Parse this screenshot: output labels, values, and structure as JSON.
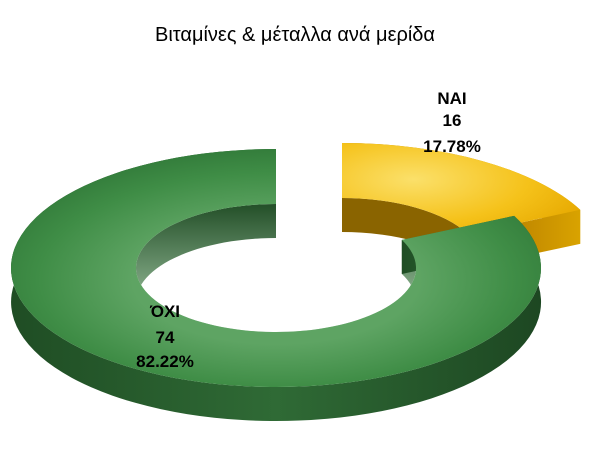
{
  "chart_data": {
    "type": "pie",
    "title": "Βιταμίνες & μέταλλα ανά μερίδα",
    "categories": [
      "ΝΑΙ",
      "ΌΧΙ"
    ],
    "values": [
      16,
      74
    ],
    "percent_labels": [
      "17.78%",
      "82.22%"
    ],
    "colors": [
      "#f5b800",
      "#3e8a45"
    ],
    "style": "3d-doughnut-exploded",
    "legend": "none"
  }
}
